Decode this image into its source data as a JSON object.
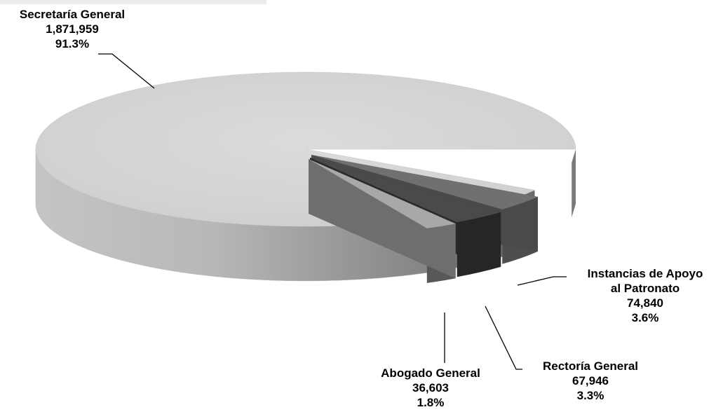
{
  "chart_data": {
    "type": "pie",
    "style": "3d-exploded",
    "slices": [
      {
        "name": "Secretaría General",
        "value": "1,871,959",
        "percent": "91.3%",
        "numeric": 1871959,
        "color": "#d6d6d6"
      },
      {
        "name": "Instancias de Apoyo al Patronato",
        "name_lines": [
          "Instancias de Apoyo",
          "al Patronato"
        ],
        "value": "74,840",
        "percent": "3.6%",
        "numeric": 74840,
        "color": "#6b6b6b"
      },
      {
        "name": "Rectoría General",
        "value": "67,946",
        "percent": "3.3%",
        "numeric": 67946,
        "color": "#3a3a3a"
      },
      {
        "name": "Abogado General",
        "value": "36,603",
        "percent": "1.8%",
        "numeric": 36603,
        "color": "#9c9c9c"
      }
    ]
  }
}
